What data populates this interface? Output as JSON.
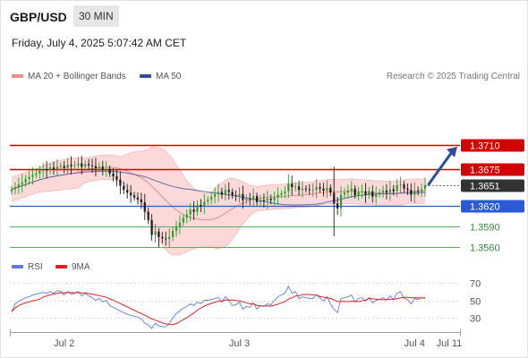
{
  "header": {
    "pair": "GBP/USD",
    "timeframe": "30 MIN",
    "datetime": "Friday, July 4, 2025 5:07:42 AM CET"
  },
  "legend": {
    "bb_label": "MA 20 + Bollinger Bands",
    "ma50_label": "MA 50",
    "rsi_label": "RSI",
    "rsi_ma_label": "9MA",
    "credit": "Research © 2025 Trading Central"
  },
  "colors": {
    "bb_fill": "#f9cccc",
    "bb_line": "#e98b8b",
    "ma50": "#3f5c9f",
    "candle_up": "#2e9c2e",
    "candle_down": "#1a1a1a",
    "resistance": "#d40000",
    "pivot": "#2a5bd7",
    "support": "#58b05e",
    "rsi": "#5b7ce0",
    "rsi_ma": "#e02020",
    "arrow": "#2a4e9a"
  },
  "chart_data": [
    {
      "type": "candlestick",
      "title": "GBP/USD",
      "x_tick_labels": [
        "Jul 2",
        "Jul 3",
        "Jul 4",
        "Jul 11"
      ],
      "ylim": [
        1.3555,
        1.3765
      ],
      "close": [
        1.3645,
        1.3648,
        1.3652,
        1.3655,
        1.366,
        1.3663,
        1.3666,
        1.3668,
        1.3672,
        1.3674,
        1.3673,
        1.3677,
        1.3675,
        1.3678,
        1.3679,
        1.3676,
        1.3681,
        1.3679,
        1.368,
        1.3683,
        1.3678,
        1.3682,
        1.368,
        1.3679,
        1.3676,
        1.3678,
        1.3674,
        1.3675,
        1.3668,
        1.3664,
        1.3659,
        1.365,
        1.3644,
        1.364,
        1.3636,
        1.3633,
        1.363,
        1.3626,
        1.3612,
        1.36,
        1.3578,
        1.3583,
        1.3575,
        1.3573,
        1.3572,
        1.3575,
        1.3584,
        1.359,
        1.3596,
        1.3603,
        1.3608,
        1.3615,
        1.3612,
        1.3622,
        1.362,
        1.3627,
        1.363,
        1.3634,
        1.3638,
        1.3641,
        1.3637,
        1.3644,
        1.3641,
        1.3636,
        1.3635,
        1.3638,
        1.3629,
        1.3631,
        1.363,
        1.3635,
        1.3626,
        1.3629,
        1.3628,
        1.3631,
        1.3629,
        1.3633,
        1.3637,
        1.3639,
        1.3642,
        1.3653,
        1.3648,
        1.3649,
        1.3644,
        1.3646,
        1.3645,
        1.3644,
        1.3644,
        1.3648,
        1.3646,
        1.3643,
        1.3647,
        1.364,
        1.3624,
        1.3617,
        1.3637,
        1.364,
        1.3643,
        1.3646,
        1.3636,
        1.3641,
        1.3642,
        1.3637,
        1.3642,
        1.3634,
        1.3638,
        1.364,
        1.3643,
        1.364,
        1.3645,
        1.3642,
        1.3651,
        1.3652,
        1.3646,
        1.3644,
        1.3637,
        1.3643,
        1.3642,
        1.3645,
        1.3651
      ],
      "levels": [
        {
          "value": "1.3710",
          "kind": "resistance"
        },
        {
          "value": "1.3675",
          "kind": "resistance"
        },
        {
          "value": "1.3651",
          "kind": "last"
        },
        {
          "value": "1.3620",
          "kind": "pivot"
        },
        {
          "value": "1.3590",
          "kind": "support"
        },
        {
          "value": "1.3560",
          "kind": "support"
        }
      ],
      "projection": {
        "from": 1.3651,
        "to": 1.371
      }
    },
    {
      "type": "line",
      "series": [
        {
          "name": "RSI"
        },
        {
          "name": "9MA"
        }
      ],
      "ylim": [
        15,
        80
      ],
      "y_tick_labels": [
        "70",
        "50",
        "30"
      ],
      "y_ticks": [
        70,
        50,
        30
      ],
      "rsi": [
        37,
        46,
        49,
        51,
        53,
        54,
        56,
        57,
        58,
        59,
        58,
        60,
        58,
        61,
        60,
        56,
        60,
        57,
        58,
        60,
        55,
        58,
        55,
        53,
        50,
        52,
        48,
        50,
        44,
        42,
        40,
        38,
        36,
        34,
        33,
        32,
        31,
        29,
        24,
        22,
        18,
        24,
        21,
        20,
        20,
        24,
        30,
        35,
        38,
        41,
        43,
        46,
        44,
        48,
        46,
        50,
        50,
        51,
        52,
        53,
        48,
        54,
        50,
        44,
        45,
        48,
        40,
        43,
        42,
        47,
        40,
        44,
        43,
        46,
        45,
        50,
        54,
        56,
        58,
        66,
        58,
        60,
        52,
        54,
        53,
        52,
        52,
        56,
        53,
        49,
        54,
        46,
        40,
        36,
        52,
        53,
        54,
        56,
        48,
        52,
        53,
        49,
        53,
        47,
        50,
        51,
        53,
        50,
        55,
        51,
        58,
        60,
        52,
        51,
        46,
        52,
        51,
        53,
        52
      ]
    }
  ]
}
